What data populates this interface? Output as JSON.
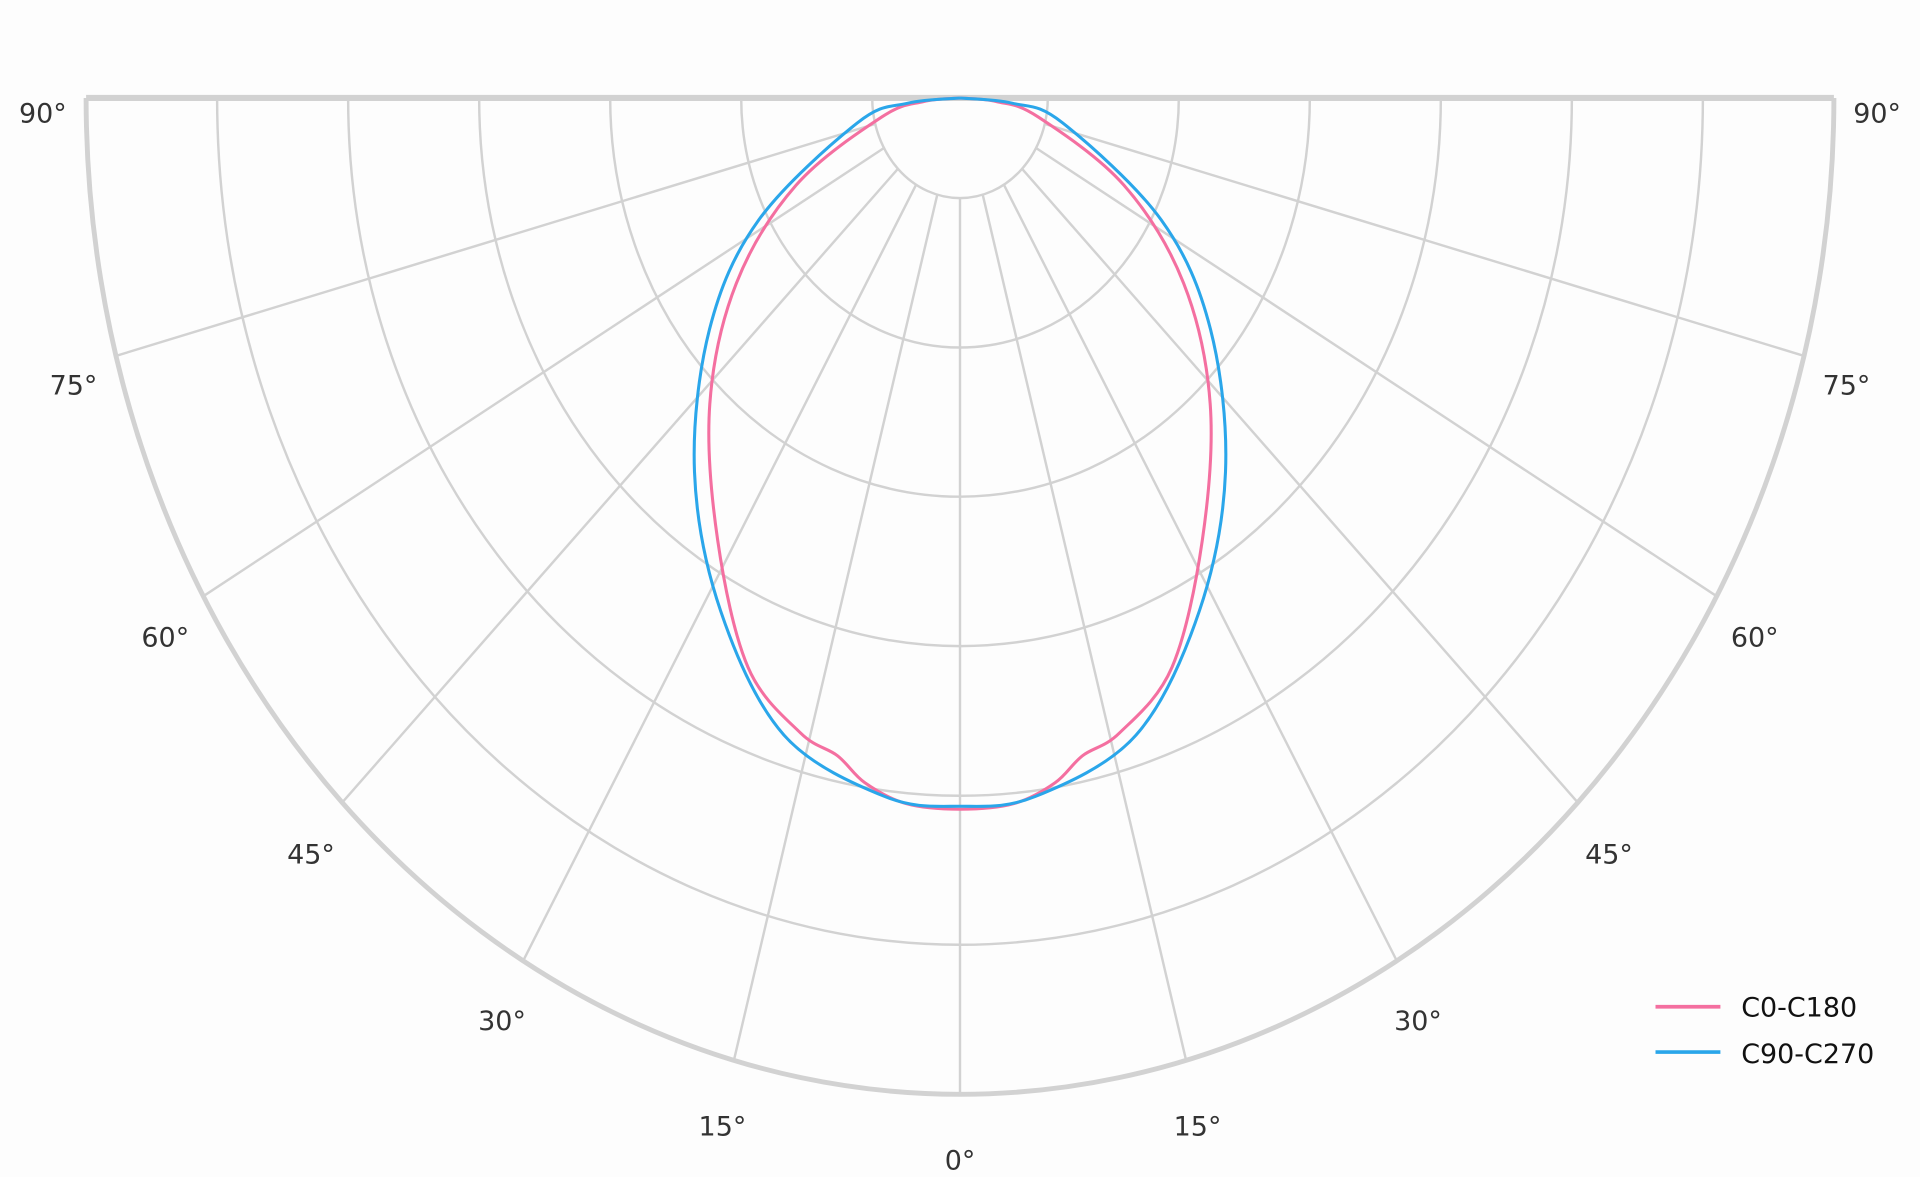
{
  "chart_data": {
    "type": "polar-line",
    "title": "",
    "theta_zero": "bottom",
    "theta_range_deg": [
      -90,
      90
    ],
    "theta_tick_labels": [
      "90°",
      "75°",
      "60°",
      "45°",
      "30°",
      "15°",
      "0°",
      "15°",
      "30°",
      "45°",
      "60°",
      "75°",
      "90°"
    ],
    "theta_ticks_deg": [
      -90,
      -75,
      -60,
      -45,
      -30,
      -15,
      0,
      15,
      30,
      45,
      60,
      75,
      90
    ],
    "rlim": [
      0,
      6.67
    ],
    "rgrid": [
      0.67,
      1.67,
      2.67,
      3.67,
      4.67,
      5.67,
      6.67
    ],
    "radial_tick_labels": "none",
    "grid": true,
    "legend_position": "bottom-right",
    "series": [
      {
        "name": "C0-C180",
        "color": "#f46fa0",
        "symmetric": true,
        "theta_deg": [
          0,
          5,
          9,
          12,
          16,
          23,
          32,
          43,
          54,
          65,
          78,
          85,
          90
        ],
        "r": [
          4.76,
          4.74,
          4.64,
          4.5,
          4.42,
          4.14,
          3.49,
          2.8,
          2.11,
          1.38,
          0.61,
          0.28,
          0
        ]
      },
      {
        "name": "C90-C270",
        "color": "#2aa6ea",
        "symmetric": true,
        "theta_deg": [
          0,
          7,
          17.5,
          28,
          39,
          51,
          62,
          78,
          85,
          90
        ],
        "r": [
          4.74,
          4.71,
          4.47,
          3.89,
          3.22,
          2.46,
          1.74,
          0.8,
          0.4,
          0
        ]
      }
    ]
  }
}
